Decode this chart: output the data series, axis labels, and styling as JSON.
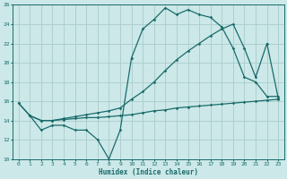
{
  "xlabel": "Humidex (Indice chaleur)",
  "bg_color": "#cce8e8",
  "grid_color": "#aacccc",
  "line_color": "#1a6b6b",
  "xlim": [
    -0.5,
    23.5
  ],
  "ylim": [
    10,
    26
  ],
  "xticks": [
    0,
    1,
    2,
    3,
    4,
    5,
    6,
    7,
    8,
    9,
    10,
    11,
    12,
    13,
    14,
    15,
    16,
    17,
    18,
    19,
    20,
    21,
    22,
    23
  ],
  "yticks": [
    10,
    12,
    14,
    16,
    18,
    20,
    22,
    24,
    26
  ],
  "line1_x": [
    0,
    1,
    2,
    3,
    4,
    5,
    6,
    7,
    8,
    9,
    10,
    11,
    12,
    13,
    14,
    15,
    16,
    17,
    18,
    19,
    20,
    21,
    22,
    23
  ],
  "line1_y": [
    15.8,
    14.5,
    13.0,
    13.5,
    13.5,
    13.0,
    13.0,
    12.0,
    10.0,
    13.0,
    20.5,
    23.5,
    24.5,
    25.7,
    25.0,
    25.5,
    25.0,
    24.7,
    23.7,
    21.5,
    18.5,
    18.0,
    16.5,
    16.5
  ],
  "line2_x": [
    0,
    1,
    2,
    3,
    4,
    5,
    6,
    7,
    8,
    9,
    10,
    11,
    12,
    13,
    14,
    15,
    16,
    17,
    18,
    19,
    20,
    21,
    22,
    23
  ],
  "line2_y": [
    15.8,
    14.5,
    14.0,
    14.0,
    14.1,
    14.2,
    14.3,
    14.3,
    14.4,
    14.5,
    14.6,
    14.8,
    15.0,
    15.1,
    15.3,
    15.4,
    15.5,
    15.6,
    15.7,
    15.8,
    15.9,
    16.0,
    16.1,
    16.2
  ],
  "line3_x": [
    1,
    2,
    3,
    4,
    5,
    6,
    7,
    8,
    9,
    10,
    11,
    12,
    13,
    14,
    15,
    16,
    17,
    18,
    19,
    20,
    21,
    22,
    23
  ],
  "line3_y": [
    14.5,
    14.0,
    14.0,
    14.2,
    14.4,
    14.6,
    14.8,
    15.0,
    15.3,
    16.2,
    17.0,
    18.0,
    19.2,
    20.3,
    21.2,
    22.0,
    22.8,
    23.5,
    24.0,
    21.5,
    18.5,
    22.0,
    16.3
  ]
}
